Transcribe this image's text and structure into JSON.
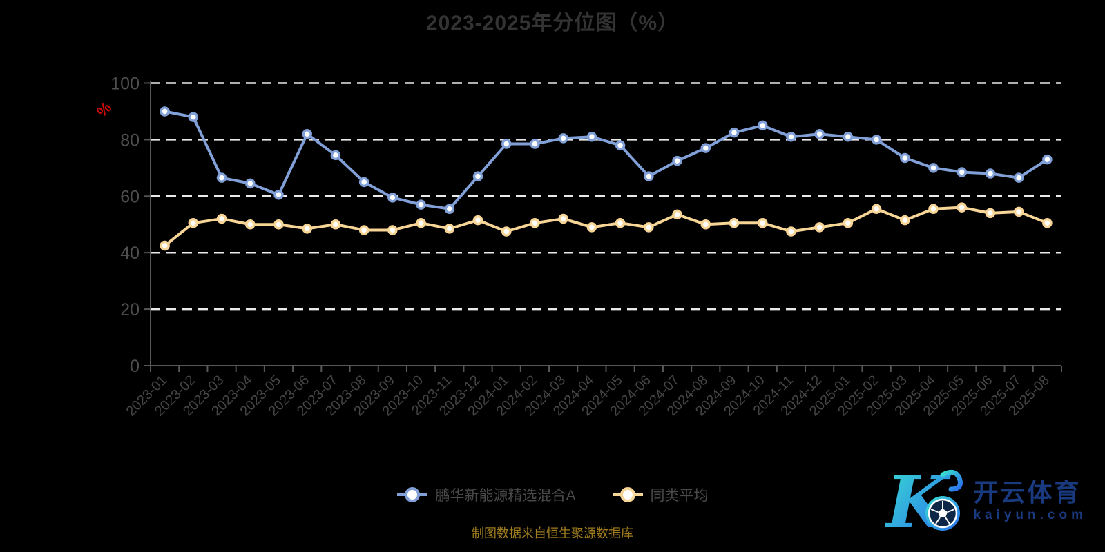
{
  "title": "2023-2025年分位图（%）",
  "y_axis_unit": "%",
  "source_note": "制图数据来自恒生聚源数据库",
  "logo": {
    "brand": "开云体育",
    "domain": "kaiyun.com"
  },
  "chart_data": {
    "type": "line",
    "title": "2023-2025年分位图（%）",
    "ylabel": "%",
    "ylim": [
      0,
      100
    ],
    "yticks": [
      0,
      20,
      40,
      60,
      80,
      100
    ],
    "grid": "horizontal dashed white lines on black background",
    "legend_position": "bottom center",
    "categories": [
      "2023-01",
      "2023-02",
      "2023-03",
      "2023-04",
      "2023-05",
      "2023-06",
      "2023-07",
      "2023-08",
      "2023-09",
      "2023-10",
      "2023-11",
      "2023-12",
      "2024-01",
      "2024-02",
      "2024-03",
      "2024-04",
      "2024-05",
      "2024-06",
      "2024-07",
      "2024-08",
      "2024-09",
      "2024-10",
      "2024-11",
      "2024-12",
      "2025-01",
      "2025-02",
      "2025-03",
      "2025-04",
      "2025-05",
      "2025-06",
      "2025-07",
      "2025-08"
    ],
    "series": [
      {
        "name": "鹏华新能源精选混合A",
        "color": "#82a0d8",
        "values": [
          90,
          88,
          66.5,
          64.5,
          60.5,
          82,
          74.5,
          65,
          59.5,
          57,
          55.5,
          67,
          78.5,
          78.5,
          80.5,
          81,
          78,
          67,
          72.5,
          77,
          82.5,
          85,
          81,
          82,
          81,
          80,
          73.5,
          70,
          68.5,
          68,
          66.5,
          73
        ]
      },
      {
        "name": "同类平均",
        "color": "#f7d596",
        "values": [
          42.5,
          50.5,
          52,
          50,
          50,
          48.5,
          50,
          48,
          48,
          50.5,
          48.5,
          51.5,
          47.5,
          50.5,
          52,
          49,
          50.5,
          49,
          53.5,
          50,
          50.5,
          50.5,
          47.5,
          49,
          50.5,
          55.5,
          51.5,
          55.5,
          56,
          54,
          54.5,
          50.5
        ]
      }
    ],
    "style": {
      "background": "#000000",
      "title_color": "#333333",
      "axis_line_color": "#585858",
      "y_label_color": "#4f4f4f",
      "x_label_color": "#454545",
      "gridline_color": "#e9e9e9",
      "unit_label_color": "#cf0b0b",
      "marker": "white circle with colored ring"
    }
  }
}
